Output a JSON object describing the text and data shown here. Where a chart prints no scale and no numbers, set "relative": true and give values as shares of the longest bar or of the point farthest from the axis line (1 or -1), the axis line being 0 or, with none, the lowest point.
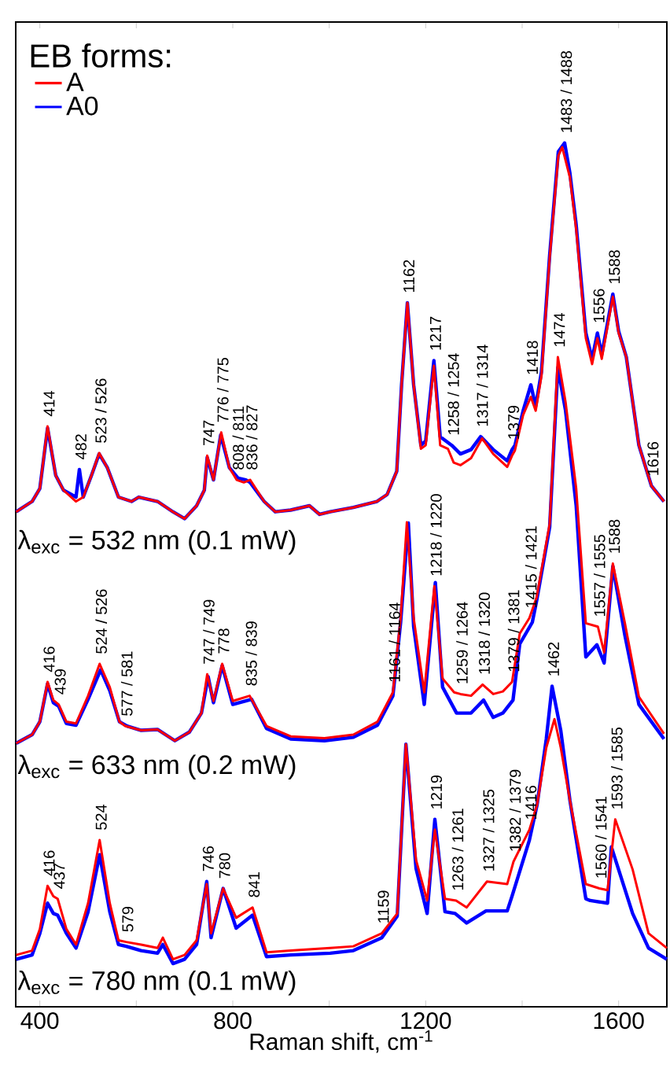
{
  "chart_data": {
    "type": "line",
    "relative": true,
    "xlabel": "Raman shift, cm$^{-1}$",
    "legend_title": "EB forms:",
    "legend": "top left",
    "xlim": [
      350,
      1700
    ],
    "xticks": [
      400,
      {
        "value": 600,
        "label": null
      },
      800,
      {
        "value": 1000,
        "label": null
      },
      1200,
      {
        "value": 1400,
        "label": null
      },
      1600
    ],
    "series": [
      {
        "name": "A",
        "color": "#ff0000",
        "x": [
          351,
          384,
          400,
          416,
          433,
          449,
          475,
          490,
          507,
          523,
          540,
          563,
          590,
          605,
          644,
          676,
          700,
          725,
          741,
          747,
          760,
          776,
          793,
          808,
          823,
          836,
          865,
          888,
          920,
          959,
          980,
          1002,
          1050,
          1099,
          1120,
          1140,
          1150,
          1162,
          1175,
          1190,
          1200,
          1217,
          1230,
          1246,
          1258,
          1272,
          1294,
          1317,
          1340,
          1369,
          1379,
          1385,
          1402,
          1418,
          1428,
          1440,
          1457,
          1475,
          1483,
          1499,
          1512,
          1532,
          1545,
          1556,
          1565,
          1588,
          1600,
          1616,
          1642,
          1668,
          1694
        ],
        "values": [
          0.573,
          0.585,
          0.6,
          0.672,
          0.615,
          0.598,
          0.585,
          0.59,
          0.615,
          0.641,
          0.624,
          0.59,
          0.585,
          0.59,
          0.585,
          0.573,
          0.565,
          0.58,
          0.598,
          0.638,
          0.61,
          0.665,
          0.624,
          0.61,
          0.607,
          0.61,
          0.585,
          0.573,
          0.575,
          0.58,
          0.57,
          0.573,
          0.578,
          0.585,
          0.593,
          0.62,
          0.72,
          0.815,
          0.72,
          0.646,
          0.65,
          0.742,
          0.65,
          0.646,
          0.63,
          0.627,
          0.635,
          0.658,
          0.64,
          0.625,
          0.638,
          0.644,
          0.685,
          0.706,
          0.69,
          0.73,
          0.867,
          0.985,
          0.995,
          0.96,
          0.9,
          0.774,
          0.744,
          0.774,
          0.75,
          0.822,
          0.78,
          0.752,
          0.65,
          0.603,
          0.585
        ]
      },
      {
        "name": "A0",
        "color": "#0000ff",
        "x": [
          351,
          384,
          400,
          416,
          433,
          449,
          475,
          482,
          490,
          507,
          523,
          540,
          563,
          590,
          605,
          644,
          676,
          700,
          725,
          741,
          747,
          760,
          775,
          793,
          811,
          827,
          836,
          865,
          888,
          920,
          959,
          980,
          1002,
          1050,
          1099,
          1120,
          1140,
          1150,
          1162,
          1175,
          1190,
          1200,
          1217,
          1230,
          1254,
          1272,
          1294,
          1314,
          1340,
          1369,
          1379,
          1385,
          1402,
          1418,
          1428,
          1440,
          1457,
          1475,
          1488,
          1499,
          1512,
          1532,
          1545,
          1556,
          1565,
          1588,
          1600,
          1616,
          1642,
          1668,
          1694
        ],
        "values": [
          0.573,
          0.585,
          0.6,
          0.67,
          0.615,
          0.598,
          0.59,
          0.622,
          0.59,
          0.615,
          0.64,
          0.624,
          0.59,
          0.585,
          0.59,
          0.585,
          0.573,
          0.565,
          0.58,
          0.598,
          0.636,
          0.61,
          0.662,
          0.624,
          0.612,
          0.61,
          0.607,
          0.585,
          0.573,
          0.575,
          0.58,
          0.57,
          0.573,
          0.578,
          0.585,
          0.593,
          0.62,
          0.72,
          0.815,
          0.72,
          0.65,
          0.655,
          0.748,
          0.66,
          0.65,
          0.64,
          0.645,
          0.66,
          0.645,
          0.632,
          0.645,
          0.65,
          0.69,
          0.72,
          0.695,
          0.735,
          0.87,
          0.99,
          1.0,
          0.965,
          0.905,
          0.78,
          0.75,
          0.78,
          0.755,
          0.825,
          0.782,
          0.752,
          0.65,
          0.603,
          0.585
        ]
      },
      {
        "color": "#ff0000",
        "x": [
          351,
          384,
          400,
          416,
          428,
          439,
          455,
          475,
          500,
          524,
          545,
          565,
          577,
          610,
          644,
          680,
          710,
          735,
          747,
          760,
          778,
          800,
          835,
          870,
          920,
          990,
          1050,
          1100,
          1132,
          1148,
          1161,
          1175,
          1197,
          1218,
          1235,
          1259,
          1272,
          1294,
          1318,
          1340,
          1360,
          1379,
          1395,
          1415,
          1430,
          1457,
          1474,
          1490,
          1512,
          1532,
          1557,
          1570,
          1588,
          1613,
          1642,
          1694
        ],
        "values": [
          0.305,
          0.315,
          0.33,
          0.376,
          0.355,
          0.35,
          0.33,
          0.328,
          0.36,
          0.397,
          0.37,
          0.33,
          0.325,
          0.32,
          0.321,
          0.308,
          0.318,
          0.34,
          0.385,
          0.354,
          0.397,
          0.354,
          0.36,
          0.325,
          0.313,
          0.311,
          0.315,
          0.33,
          0.364,
          0.45,
          0.561,
          0.45,
          0.364,
          0.487,
          0.38,
          0.364,
          0.362,
          0.36,
          0.373,
          0.362,
          0.365,
          0.376,
          0.432,
          0.45,
          0.474,
          0.559,
          0.752,
          0.7,
          0.6,
          0.444,
          0.44,
          0.41,
          0.513,
          0.444,
          0.359,
          0.316
        ]
      },
      {
        "color": "#0000ff",
        "x": [
          351,
          384,
          400,
          416,
          428,
          439,
          455,
          475,
          500,
          526,
          545,
          565,
          581,
          610,
          644,
          680,
          710,
          735,
          749,
          760,
          778,
          800,
          839,
          870,
          920,
          990,
          1050,
          1100,
          1132,
          1148,
          1164,
          1175,
          1197,
          1220,
          1235,
          1264,
          1272,
          1294,
          1320,
          1340,
          1360,
          1381,
          1395,
          1421,
          1430,
          1457,
          1474,
          1490,
          1512,
          1532,
          1555,
          1570,
          1588,
          1613,
          1642,
          1694
        ],
        "values": [
          0.305,
          0.315,
          0.33,
          0.374,
          0.352,
          0.348,
          0.328,
          0.326,
          0.356,
          0.39,
          0.366,
          0.33,
          0.325,
          0.32,
          0.321,
          0.308,
          0.318,
          0.34,
          0.382,
          0.352,
          0.395,
          0.35,
          0.356,
          0.322,
          0.31,
          0.308,
          0.312,
          0.326,
          0.36,
          0.445,
          0.56,
          0.44,
          0.35,
          0.491,
          0.37,
          0.34,
          0.34,
          0.34,
          0.355,
          0.335,
          0.34,
          0.355,
          0.42,
          0.445,
          0.47,
          0.555,
          0.74,
          0.69,
          0.58,
          0.405,
          0.419,
          0.398,
          0.51,
          0.43,
          0.35,
          0.31
        ]
      },
      {
        "color": "#ff0000",
        "x": [
          351,
          384,
          400,
          416,
          428,
          437,
          455,
          475,
          500,
          524,
          545,
          563,
          579,
          610,
          644,
          655,
          676,
          700,
          725,
          746,
          755,
          780,
          807,
          841,
          870,
          920,
          1002,
          1050,
          1109,
          1141,
          1159,
          1180,
          1203,
          1219,
          1240,
          1263,
          1285,
          1327,
          1369,
          1382,
          1415,
          1431,
          1450,
          1467,
          1480,
          1499,
          1532,
          1560,
          1577,
          1593,
          1629,
          1662,
          1700
        ],
        "values": [
          0.06,
          0.065,
          0.09,
          0.14,
          0.128,
          0.125,
          0.09,
          0.072,
          0.12,
          0.193,
          0.12,
          0.077,
          0.075,
          0.072,
          0.068,
          0.08,
          0.055,
          0.06,
          0.077,
          0.142,
          0.085,
          0.137,
          0.103,
          0.115,
          0.063,
          0.065,
          0.068,
          0.07,
          0.085,
          0.108,
          0.304,
          0.17,
          0.123,
          0.205,
          0.125,
          0.123,
          0.115,
          0.145,
          0.142,
          0.168,
          0.205,
          0.234,
          0.3,
          0.333,
          0.3,
          0.239,
          0.142,
          0.137,
          0.135,
          0.217,
          0.159,
          0.085,
          0.068
        ]
      },
      {
        "color": "#0000ff",
        "x": [
          351,
          384,
          400,
          416,
          428,
          437,
          455,
          475,
          500,
          524,
          545,
          563,
          579,
          610,
          644,
          655,
          676,
          700,
          725,
          746,
          755,
          780,
          807,
          841,
          870,
          920,
          1002,
          1050,
          1109,
          1141,
          1159,
          1180,
          1203,
          1219,
          1240,
          1261,
          1285,
          1325,
          1369,
          1379,
          1415,
          1431,
          1450,
          1462,
          1480,
          1499,
          1532,
          1541,
          1577,
          1585,
          1629,
          1662,
          1700
        ],
        "values": [
          0.055,
          0.06,
          0.085,
          0.12,
          0.108,
          0.106,
          0.085,
          0.068,
          0.11,
          0.176,
          0.11,
          0.072,
          0.07,
          0.065,
          0.062,
          0.072,
          0.05,
          0.055,
          0.072,
          0.145,
          0.08,
          0.137,
          0.091,
          0.106,
          0.058,
          0.06,
          0.062,
          0.065,
          0.08,
          0.105,
          0.304,
          0.16,
          0.108,
          0.217,
          0.11,
          0.108,
          0.097,
          0.111,
          0.111,
          0.128,
          0.193,
          0.234,
          0.31,
          0.371,
          0.32,
          0.239,
          0.125,
          0.123,
          0.12,
          0.185,
          0.108,
          0.068,
          0.055
        ]
      }
    ],
    "annotations": [
      "λ$_{exc}$ = 532 nm (0.1 mW)",
      "λ$_{exc}$ = 633 nm (0.2 mW)",
      "λ$_{exc}$ = 780 nm (0.1 mW)",
      {
        "text": "414",
        "x": 416,
        "y": 0.672
      },
      {
        "text": "482",
        "x": 482,
        "y": 0.622
      },
      {
        "text": "523 / 526",
        "x": 523,
        "y": 0.641
      },
      {
        "text": "747",
        "x": 747,
        "y": 0.638
      },
      {
        "text": "776 / 775",
        "x": 776,
        "y": 0.665
      },
      {
        "text": "808 / 811",
        "x": 808,
        "y": 0.61
      },
      {
        "text": "836 / 827",
        "x": 836,
        "y": 0.61
      },
      {
        "text": "1162",
        "x": 1162,
        "y": 0.815
      },
      {
        "text": "1217",
        "x": 1217,
        "y": 0.748
      },
      {
        "text": "1258 / 1254",
        "x": 1254,
        "y": 0.65
      },
      {
        "text": "1317 / 1314",
        "x": 1314,
        "y": 0.66
      },
      {
        "text": "1379",
        "x": 1379,
        "y": 0.645
      },
      {
        "text": "1418",
        "x": 1418,
        "y": 0.72
      },
      {
        "text": "1483 / 1488",
        "x": 1488,
        "y": 1.0
      },
      {
        "text": "1556",
        "x": 1556,
        "y": 0.78
      },
      {
        "text": "1588",
        "x": 1588,
        "y": 0.825
      },
      {
        "text": "1616",
        "x": 1668,
        "y": 0.603
      },
      {
        "text": "416",
        "x": 416,
        "y": 0.376
      },
      {
        "text": "439",
        "x": 439,
        "y": 0.35
      },
      {
        "text": "524 / 526",
        "x": 524,
        "y": 0.397
      },
      {
        "text": "577 / 581",
        "x": 577,
        "y": 0.325
      },
      {
        "text": "747 / 749",
        "x": 747,
        "y": 0.385
      },
      {
        "text": "778",
        "x": 778,
        "y": 0.397
      },
      {
        "text": "835 / 839",
        "x": 835,
        "y": 0.36
      },
      {
        "text": "1161 / 1164",
        "x": 1132,
        "y": 0.364
      },
      {
        "text": "1218 / 1220",
        "x": 1218,
        "y": 0.487
      },
      {
        "text": "1259 / 1264",
        "x": 1272,
        "y": 0.362
      },
      {
        "text": "1318 / 1320",
        "x": 1318,
        "y": 0.373
      },
      {
        "text": "1379 / 1381",
        "x": 1379,
        "y": 0.376
      },
      {
        "text": "1415 / 1421",
        "x": 1415,
        "y": 0.45
      },
      {
        "text": "1474",
        "x": 1474,
        "y": 0.752
      },
      {
        "text": "1557 / 1555",
        "x": 1557,
        "y": 0.44
      },
      {
        "text": "1588",
        "x": 1588,
        "y": 0.513
      },
      {
        "text": "416",
        "x": 416,
        "y": 0.14
      },
      {
        "text": "437",
        "x": 437,
        "y": 0.125
      },
      {
        "text": "524",
        "x": 524,
        "y": 0.193
      },
      {
        "text": "579",
        "x": 579,
        "y": 0.075
      },
      {
        "text": "746",
        "x": 746,
        "y": 0.145
      },
      {
        "text": "780",
        "x": 780,
        "y": 0.137
      },
      {
        "text": "841",
        "x": 841,
        "y": 0.115
      },
      {
        "text": "1159",
        "x": 1109,
        "y": 0.085
      },
      {
        "text": "1219",
        "x": 1219,
        "y": 0.217
      },
      {
        "text": "1263 / 1261",
        "x": 1263,
        "y": 0.123
      },
      {
        "text": "1327 / 1325",
        "x": 1327,
        "y": 0.145
      },
      {
        "text": "1382 / 1379",
        "x": 1382,
        "y": 0.168
      },
      {
        "text": "1416",
        "x": 1415,
        "y": 0.205
      },
      {
        "text": "1462",
        "x": 1462,
        "y": 0.371
      },
      {
        "text": "1560 / 1541",
        "x": 1560,
        "y": 0.137
      },
      {
        "text": "1593 / 1585",
        "x": 1593,
        "y": 0.217
      }
    ]
  }
}
